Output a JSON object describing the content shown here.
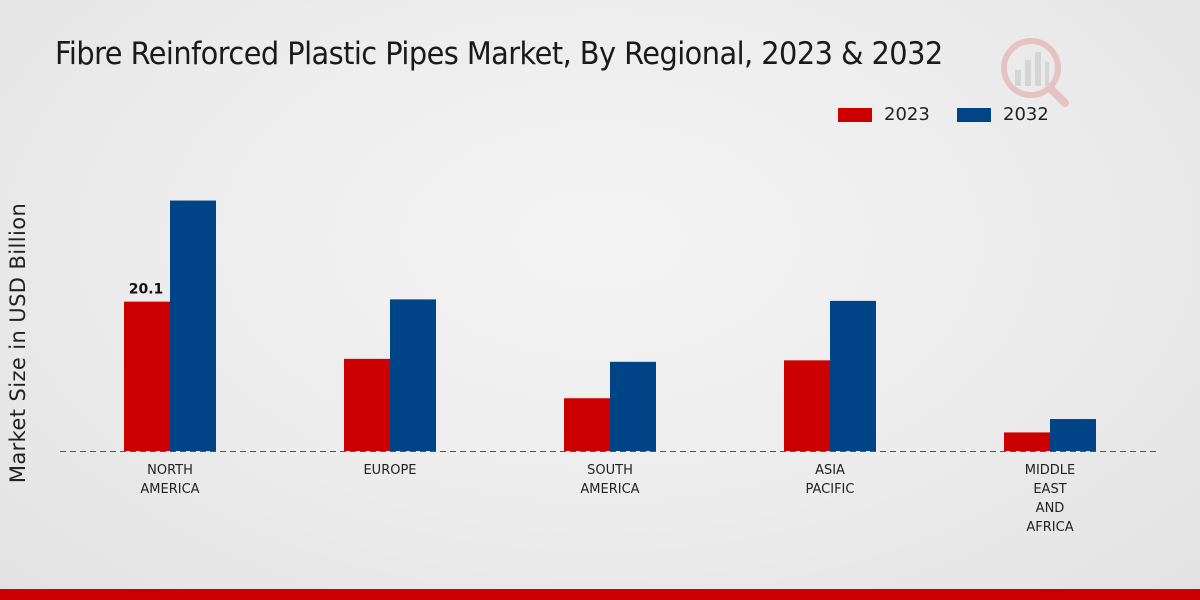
{
  "chart_data": {
    "type": "bar",
    "title": "Fibre Reinforced Plastic Pipes Market, By Regional, 2023 & 2032",
    "ylabel": "Market Size in USD Billion",
    "xlabel": "",
    "categories": [
      [
        "NORTH",
        "AMERICA"
      ],
      [
        "EUROPE"
      ],
      [
        "SOUTH",
        "AMERICA"
      ],
      [
        "ASIA",
        "PACIFIC"
      ],
      [
        "MIDDLE",
        "EAST",
        "AND",
        "AFRICA"
      ]
    ],
    "series": [
      {
        "name": "2023",
        "color": "#cc0000",
        "values": [
          20.1,
          12.4,
          7.1,
          12.2,
          2.5
        ]
      },
      {
        "name": "2032",
        "color": "#004488",
        "values": [
          33.7,
          20.4,
          12.0,
          20.2,
          4.3
        ]
      }
    ],
    "data_labels": [
      {
        "series": 0,
        "index": 0,
        "text": "20.1"
      }
    ],
    "ylim": [
      0,
      44
    ],
    "grid": false,
    "baseline": "dashed",
    "legend_position": "top-right"
  },
  "colors": {
    "accent_red": "#cc0000",
    "accent_blue": "#004488"
  }
}
